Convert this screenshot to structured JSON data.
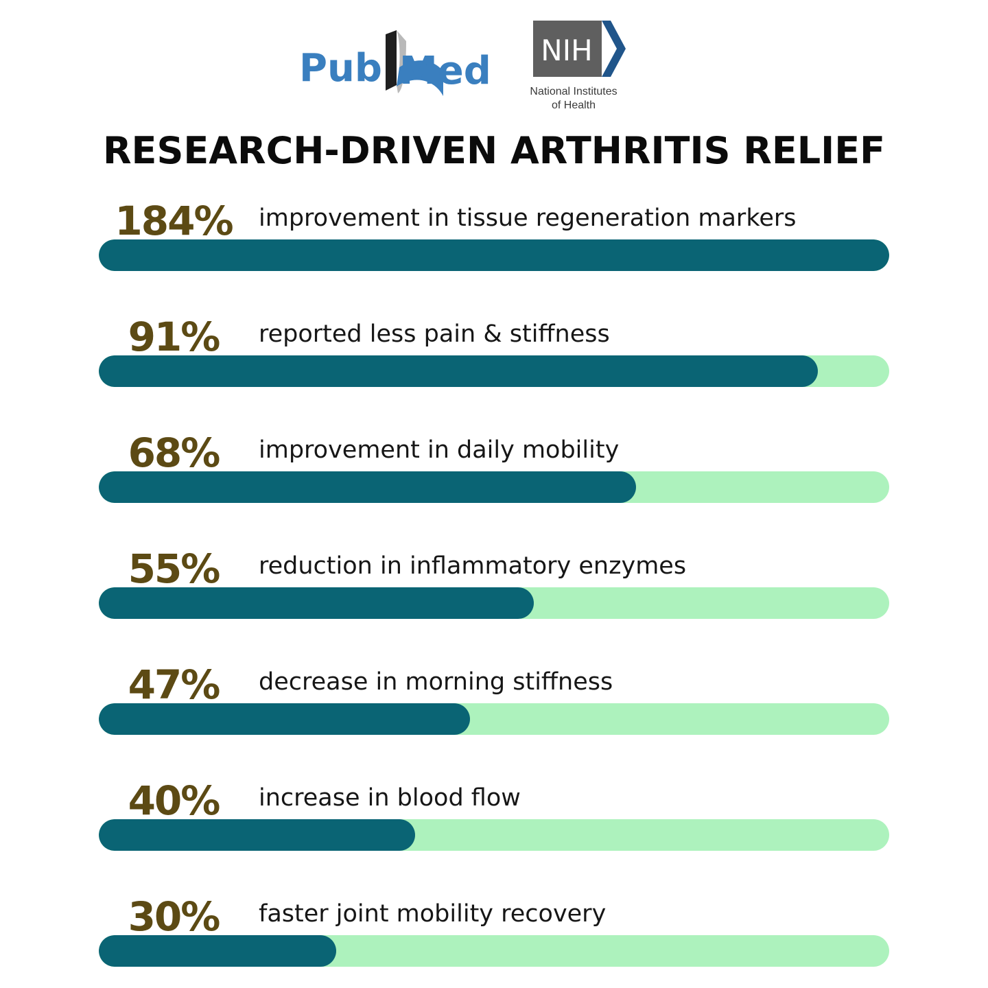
{
  "logos": {
    "pubmed_text": "PubMed",
    "nih_text": "NIH",
    "nih_subtitle": "National Institutes of Health"
  },
  "colors": {
    "pubmed_blue": "#3a7fbf",
    "pubmed_dark": "#1f1f1f",
    "nih_gray": "#5f5f5f",
    "nih_blue": "#20558a",
    "value_text": "#5c4a14",
    "bar_fill": "#0a6474",
    "bar_track": "#adf2bd"
  },
  "title": "RESEARCH-DRIVEN ARTHRITIS RELIEF",
  "chart_data": {
    "type": "bar",
    "orientation": "horizontal",
    "title": "RESEARCH-DRIVEN ARTHRITIS RELIEF",
    "xlabel": "",
    "ylabel": "",
    "xlim": [
      0,
      100
    ],
    "unit": "%",
    "grid": false,
    "items": [
      {
        "value_label": "184%",
        "label": "improvement in tissue regeneration markers",
        "value": 184,
        "fill_fraction": 1.0
      },
      {
        "value_label": "91%",
        "label": "reported less pain & stiﬀness",
        "value": 91,
        "fill_fraction": 0.91
      },
      {
        "value_label": "68%",
        "label": "improvement in daily mobility",
        "value": 68,
        "fill_fraction": 0.68
      },
      {
        "value_label": "55%",
        "label": "reduction in inflammatory enzymes",
        "value": 55,
        "fill_fraction": 0.55
      },
      {
        "value_label": "47%",
        "label": "decrease in morning stiﬀness",
        "value": 47,
        "fill_fraction": 0.47
      },
      {
        "value_label": "40%",
        "label": "increase in blood flow",
        "value": 40,
        "fill_fraction": 0.4
      },
      {
        "value_label": "30%",
        "label": "faster joint mobility recovery",
        "value": 30,
        "fill_fraction": 0.3
      }
    ]
  }
}
